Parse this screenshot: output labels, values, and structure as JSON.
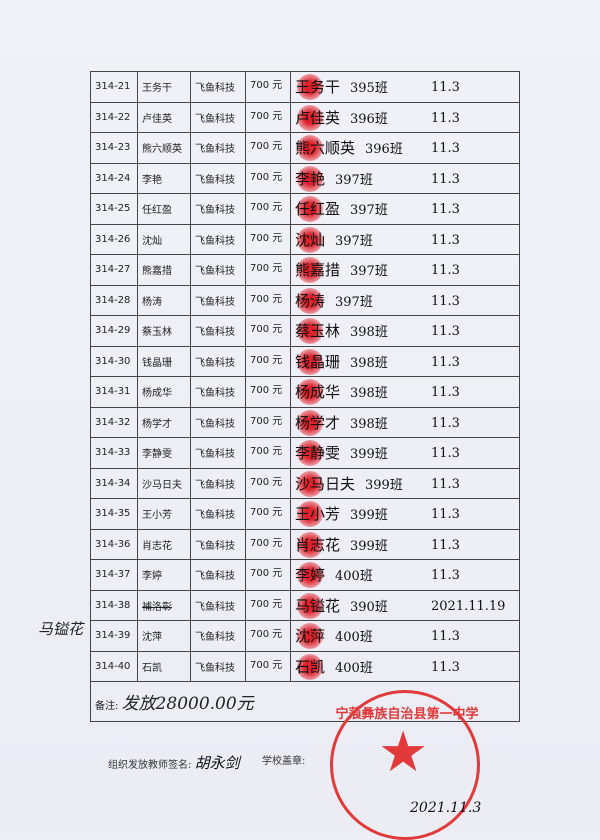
{
  "rows": [
    {
      "id": "314-21",
      "name": "王务干",
      "company": "飞鱼科技",
      "amount": "700 元",
      "signature": "王务干",
      "class": "395班",
      "date": "11.3"
    },
    {
      "id": "314-22",
      "name": "卢佳英",
      "company": "飞鱼科技",
      "amount": "700 元",
      "signature": "卢佳英",
      "class": "396班",
      "date": "11.3"
    },
    {
      "id": "314-23",
      "name": "熊六顺英",
      "company": "飞鱼科技",
      "amount": "700 元",
      "signature": "熊六顺英",
      "class": "396班",
      "date": "11.3"
    },
    {
      "id": "314-24",
      "name": "李艳",
      "company": "飞鱼科技",
      "amount": "700 元",
      "signature": "李艳",
      "class": "397班",
      "date": "11.3"
    },
    {
      "id": "314-25",
      "name": "任红盈",
      "company": "飞鱼科技",
      "amount": "700 元",
      "signature": "任红盈",
      "class": "397班",
      "date": "11.3"
    },
    {
      "id": "314-26",
      "name": "沈灿",
      "company": "飞鱼科技",
      "amount": "700 元",
      "signature": "沈灿",
      "class": "397班",
      "date": "11.3"
    },
    {
      "id": "314-27",
      "name": "熊嘉措",
      "company": "飞鱼科技",
      "amount": "700 元",
      "signature": "熊嘉措",
      "class": "397班",
      "date": "11.3"
    },
    {
      "id": "314-28",
      "name": "杨涛",
      "company": "飞鱼科技",
      "amount": "700 元",
      "signature": "杨涛",
      "class": "397班",
      "date": "11.3"
    },
    {
      "id": "314-29",
      "name": "蔡玉林",
      "company": "飞鱼科技",
      "amount": "700 元",
      "signature": "蔡玉林",
      "class": "398班",
      "date": "11.3"
    },
    {
      "id": "314-30",
      "name": "钱晶珊",
      "company": "飞鱼科技",
      "amount": "700 元",
      "signature": "钱晶珊",
      "class": "398班",
      "date": "11.3"
    },
    {
      "id": "314-31",
      "name": "杨成华",
      "company": "飞鱼科技",
      "amount": "700 元",
      "signature": "杨成华",
      "class": "398班",
      "date": "11.3"
    },
    {
      "id": "314-32",
      "name": "杨学才",
      "company": "飞鱼科技",
      "amount": "700 元",
      "signature": "杨学才",
      "class": "398班",
      "date": "11.3"
    },
    {
      "id": "314-33",
      "name": "李静雯",
      "company": "飞鱼科技",
      "amount": "700 元",
      "signature": "李静雯",
      "class": "399班",
      "date": "11.3"
    },
    {
      "id": "314-34",
      "name": "沙马日夫",
      "company": "飞鱼科技",
      "amount": "700 元",
      "signature": "沙马日夫",
      "class": "399班",
      "date": "11.3"
    },
    {
      "id": "314-35",
      "name": "王小芳",
      "company": "飞鱼科技",
      "amount": "700 元",
      "signature": "王小芳",
      "class": "399班",
      "date": "11.3"
    },
    {
      "id": "314-36",
      "name": "肖志花",
      "company": "飞鱼科技",
      "amount": "700 元",
      "signature": "肖志花",
      "class": "399班",
      "date": "11.3"
    },
    {
      "id": "314-37",
      "name": "李婷",
      "company": "飞鱼科技",
      "amount": "700 元",
      "signature": "李婷",
      "class": "400班",
      "date": "11.3"
    },
    {
      "id": "314-38",
      "name": "補洛彰",
      "company": "飞鱼科技",
      "amount": "700 元",
      "signature": "马镒花",
      "class": "390班",
      "date": "2021.11.19",
      "struck": true
    },
    {
      "id": "314-39",
      "name": "沈萍",
      "company": "飞鱼科技",
      "amount": "700 元",
      "signature": "沈萍",
      "class": "400班",
      "date": "11.3"
    },
    {
      "id": "314-40",
      "name": "石凯",
      "company": "飞鱼科技",
      "amount": "700 元",
      "signature": "石凯",
      "class": "400班",
      "date": "11.3"
    }
  ],
  "margin_note": "马镒花",
  "remark": {
    "label": "备注:",
    "value": "发放28000.00元"
  },
  "footer": {
    "teacher_label": "组织发放教师签名:",
    "teacher_signature": "胡永剑",
    "stamp_label": "学校盖章:",
    "date": "2021.11.3"
  },
  "stamp": {
    "text": "宁蒗彝族自治县第一中学"
  },
  "colors": {
    "stamp": "#e23a3a",
    "paper": "#eeeef6",
    "ink": "#111111"
  }
}
